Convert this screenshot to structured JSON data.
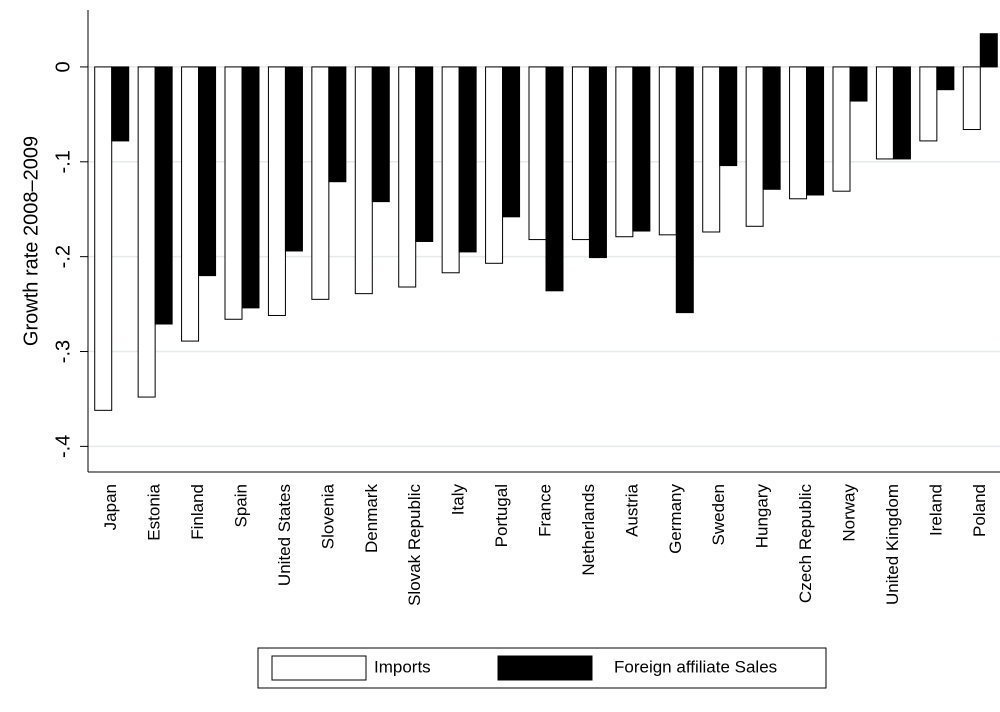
{
  "chart_data": {
    "type": "bar",
    "y_label": "Growth rate 2008–2009",
    "categories": [
      "Japan",
      "Estonia",
      "Finland",
      "Spain",
      "United States",
      "Slovenia",
      "Denmark",
      "Slovak Republic",
      "Italy",
      "Portugal",
      "France",
      "Netherlands",
      "Austria",
      "Germany",
      "Sweden",
      "Hungary",
      "Czech Republic",
      "Norway",
      "United Kingdom",
      "Ireland",
      "Poland"
    ],
    "series": [
      {
        "name": "Imports",
        "color": "#ffffff",
        "values": [
          -0.362,
          -0.348,
          -0.289,
          -0.266,
          -0.262,
          -0.245,
          -0.239,
          -0.232,
          -0.217,
          -0.207,
          -0.182,
          -0.182,
          -0.179,
          -0.177,
          -0.174,
          -0.168,
          -0.139,
          -0.131,
          -0.097,
          -0.078,
          -0.066
        ]
      },
      {
        "name": "Foreign affiliate Sales",
        "color": "#000000",
        "values": [
          -0.078,
          -0.271,
          -0.22,
          -0.254,
          -0.194,
          -0.121,
          -0.142,
          -0.184,
          -0.195,
          -0.158,
          -0.236,
          -0.201,
          -0.173,
          -0.259,
          -0.104,
          -0.129,
          -0.135,
          -0.036,
          -0.097,
          -0.024,
          0.035
        ]
      }
    ],
    "ylim": [
      -0.427,
      0.06
    ],
    "yticks": [
      {
        "value": 0,
        "label": "0"
      },
      {
        "value": -0.1,
        "label": "-.1"
      },
      {
        "value": -0.2,
        "label": "-.2"
      },
      {
        "value": -0.3,
        "label": "-.3"
      },
      {
        "value": -0.4,
        "label": "-.4"
      }
    ],
    "grid": true,
    "legend": "bottom"
  }
}
